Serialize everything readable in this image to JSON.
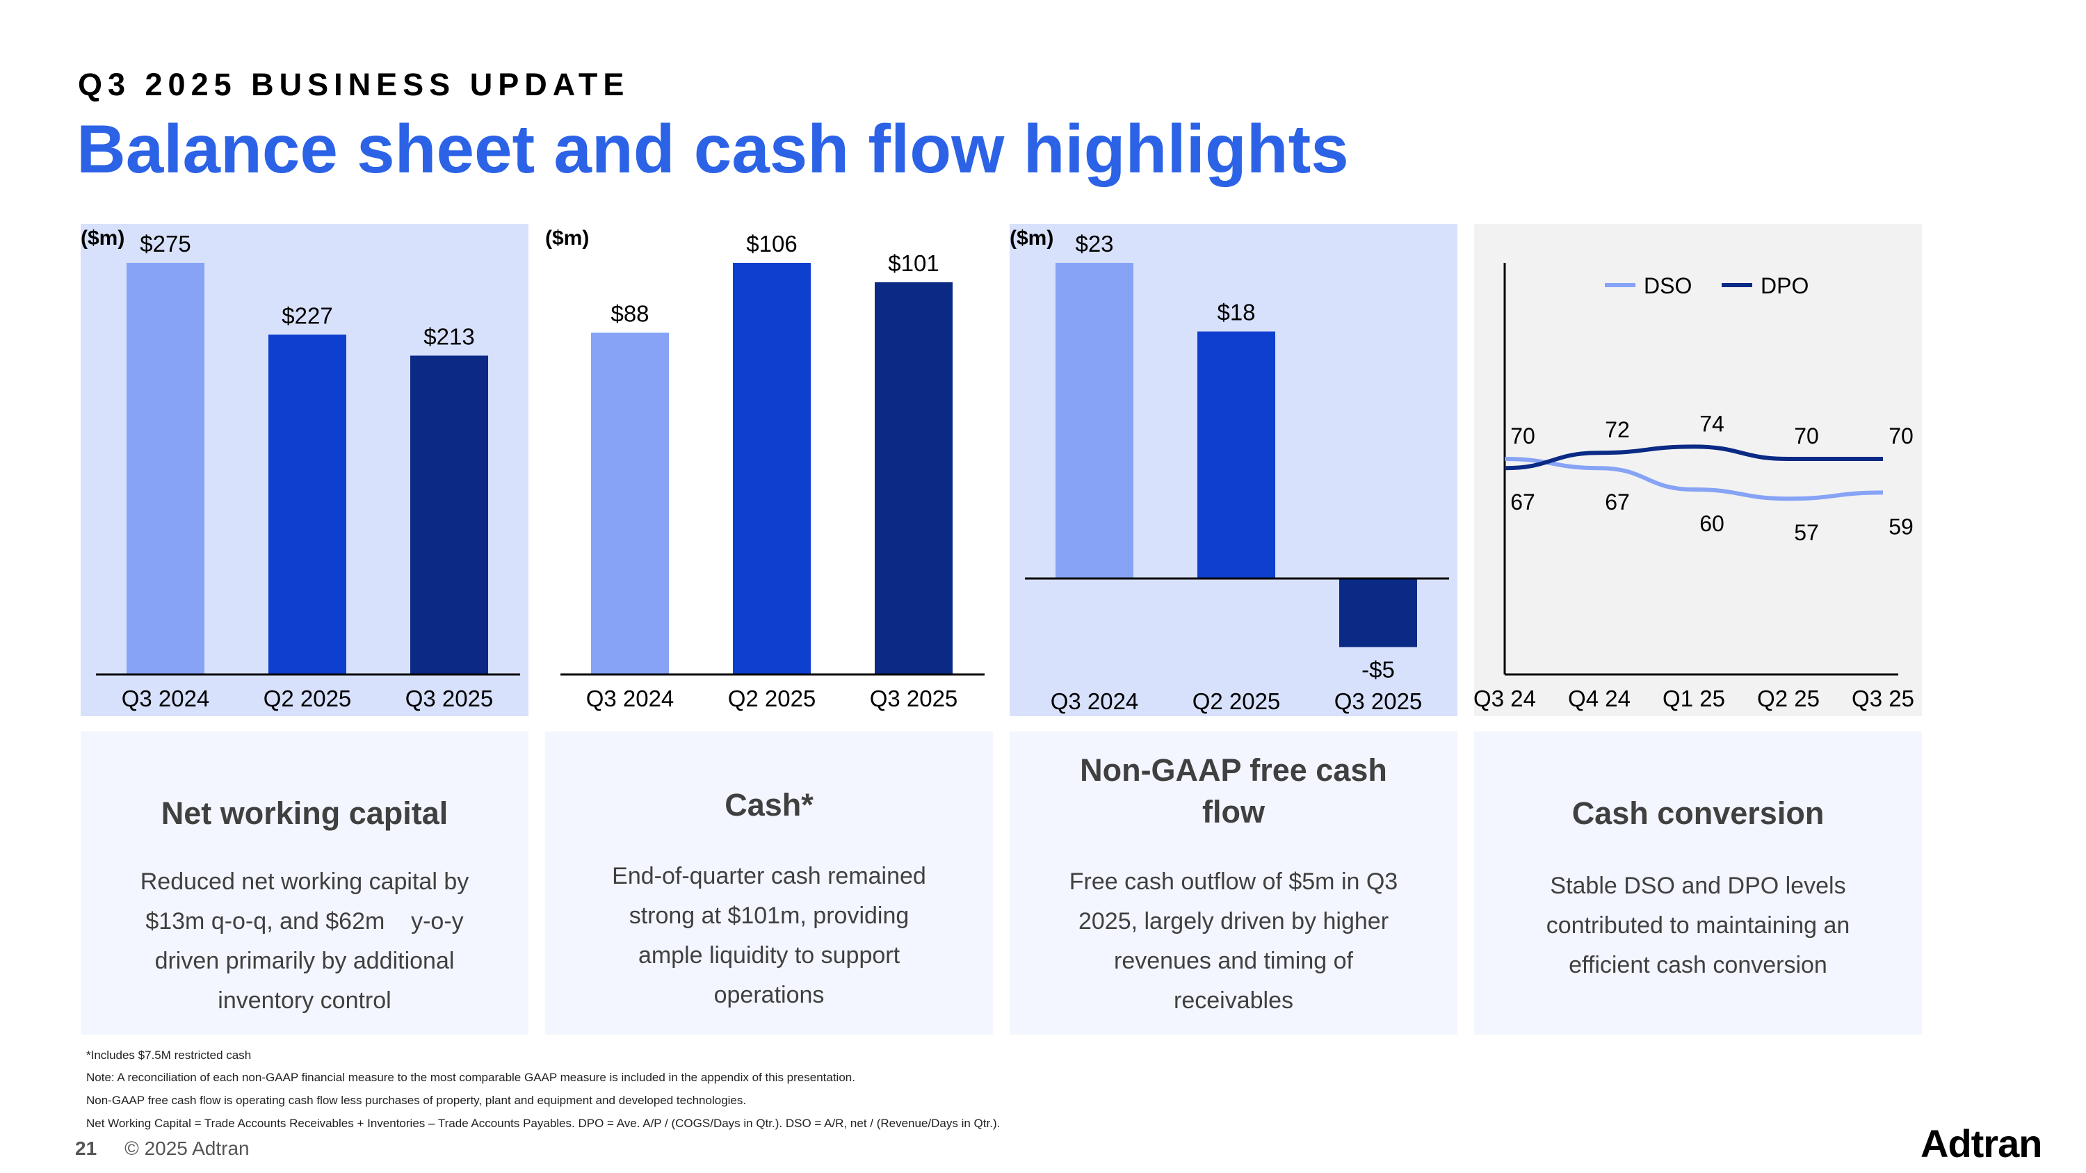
{
  "header": {
    "eyebrow": "Q3 2025 BUSINESS UPDATE",
    "title": "Balance sheet and cash flow highlights"
  },
  "colors": {
    "accent": "#2b62e6",
    "light_bar": "#86a3f5",
    "mid_bar": "#0e3fce",
    "dark_bar": "#0a2a85",
    "panel_bg": "#d8e1fb",
    "panel_bg_gray": "#f2f2f2",
    "card_bg": "#f3f6fe",
    "dso": "#86a3f5",
    "dpo": "#0a2a85"
  },
  "chart_data": [
    {
      "type": "bar",
      "unit_label": "($m)",
      "categories": [
        "Q3 2024",
        "Q2 2025",
        "Q3 2025"
      ],
      "values": [
        275,
        227,
        213
      ],
      "labels": [
        "$275",
        "$227",
        "$213"
      ],
      "ylim": [
        0,
        275
      ]
    },
    {
      "type": "bar",
      "unit_label": "($m)",
      "categories": [
        "Q3 2024",
        "Q2 2025",
        "Q3 2025"
      ],
      "values": [
        88,
        106,
        101
      ],
      "labels": [
        "$88",
        "$106",
        "$101"
      ],
      "ylim": [
        0,
        106
      ]
    },
    {
      "type": "bar",
      "unit_label": "($m)",
      "categories": [
        "Q3 2024",
        "Q2 2025",
        "Q3 2025"
      ],
      "values": [
        23,
        18,
        -5
      ],
      "labels": [
        "$23",
        "$18",
        "-$5"
      ],
      "ylim": [
        -5,
        23
      ]
    },
    {
      "type": "line",
      "categories": [
        "Q3 24",
        "Q4 24",
        "Q1 25",
        "Q2 25",
        "Q3 25"
      ],
      "ylim": [
        0,
        100
      ],
      "series": [
        {
          "name": "DSO",
          "values": [
            70,
            67,
            60,
            57,
            59
          ],
          "labels": [
            "70",
            "67",
            "60",
            "57",
            "59"
          ]
        },
        {
          "name": "DPO",
          "values": [
            67,
            72,
            74,
            70,
            70
          ],
          "labels": [
            "67",
            "72",
            "74",
            "70",
            "70"
          ]
        }
      ]
    }
  ],
  "cards": [
    {
      "title": "Net working capital",
      "text": [
        "Reduced net working capital by",
        "$13m q-o-q, and $62m    y-o-y",
        "driven primarily by additional",
        "inventory control"
      ]
    },
    {
      "title": "Cash*",
      "text": [
        "End-of-quarter cash remained",
        "strong at $101m, providing",
        "ample liquidity to support",
        "operations"
      ]
    },
    {
      "title": "Non-GAAP free cash flow",
      "title_lines": [
        "Non-GAAP free cash",
        "flow"
      ],
      "text": [
        "Free cash outflow of $5m in Q3",
        "2025, largely driven by higher",
        "revenues and timing of",
        "receivables"
      ]
    },
    {
      "title": "Cash conversion",
      "text": [
        "Stable DSO and DPO levels",
        "contributed to maintaining an",
        "efficient cash conversion"
      ]
    }
  ],
  "footnotes": [
    "*Includes $7.5M restricted cash",
    "Note: A reconciliation of each non-GAAP financial measure to the most comparable GAAP measure is included in the appendix of this presentation.",
    "Non-GAAP free cash flow is operating cash flow less purchases of property, plant and equipment and developed technologies.",
    "Net Working Capital = Trade Accounts Receivables + Inventories – Trade Accounts Payables.  DPO = Ave. A/P / (COGS/Days in Qtr.). DSO =  A/R, net / (Revenue/Days in Qtr.)."
  ],
  "footer": {
    "page": "21",
    "copyright": "© 2025 Adtran",
    "logo": "Adtran"
  }
}
